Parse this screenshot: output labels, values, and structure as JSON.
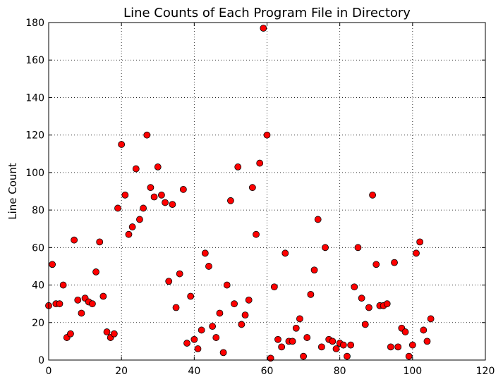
{
  "chart_data": {
    "type": "scatter",
    "title": "Line Counts of Each Program File in Directory",
    "xlabel": "",
    "ylabel": "Line Count",
    "xlim": [
      0,
      120
    ],
    "ylim": [
      0,
      180
    ],
    "x_ticks": [
      "0",
      "20",
      "40",
      "60",
      "80",
      "100",
      "120"
    ],
    "y_ticks": [
      "0",
      "20",
      "40",
      "60",
      "80",
      "100",
      "120",
      "140",
      "160",
      "180"
    ],
    "grid": true,
    "marker_color": "#ff0000",
    "marker_edge_color": "#000000",
    "points": [
      [
        0,
        29
      ],
      [
        1,
        51
      ],
      [
        2,
        30
      ],
      [
        3,
        30
      ],
      [
        4,
        40
      ],
      [
        5,
        12
      ],
      [
        6,
        14
      ],
      [
        7,
        64
      ],
      [
        8,
        32
      ],
      [
        9,
        25
      ],
      [
        10,
        33
      ],
      [
        11,
        31
      ],
      [
        12,
        30
      ],
      [
        13,
        47
      ],
      [
        14,
        63
      ],
      [
        15,
        34
      ],
      [
        16,
        15
      ],
      [
        17,
        12
      ],
      [
        18,
        14
      ],
      [
        19,
        81
      ],
      [
        20,
        115
      ],
      [
        21,
        88
      ],
      [
        22,
        67
      ],
      [
        23,
        71
      ],
      [
        24,
        102
      ],
      [
        25,
        75
      ],
      [
        26,
        81
      ],
      [
        27,
        120
      ],
      [
        28,
        92
      ],
      [
        29,
        87
      ],
      [
        30,
        103
      ],
      [
        31,
        88
      ],
      [
        32,
        84
      ],
      [
        33,
        42
      ],
      [
        34,
        83
      ],
      [
        35,
        28
      ],
      [
        36,
        46
      ],
      [
        37,
        91
      ],
      [
        38,
        9
      ],
      [
        39,
        34
      ],
      [
        40,
        11
      ],
      [
        41,
        6
      ],
      [
        42,
        16
      ],
      [
        43,
        57
      ],
      [
        44,
        50
      ],
      [
        45,
        18
      ],
      [
        46,
        12
      ],
      [
        47,
        25
      ],
      [
        48,
        4
      ],
      [
        49,
        40
      ],
      [
        50,
        85
      ],
      [
        51,
        30
      ],
      [
        52,
        103
      ],
      [
        53,
        19
      ],
      [
        54,
        24
      ],
      [
        55,
        32
      ],
      [
        56,
        92
      ],
      [
        57,
        67
      ],
      [
        58,
        105
      ],
      [
        59,
        177
      ],
      [
        60,
        120
      ],
      [
        61,
        1
      ],
      [
        62,
        39
      ],
      [
        63,
        11
      ],
      [
        64,
        7
      ],
      [
        65,
        57
      ],
      [
        66,
        10
      ],
      [
        67,
        10
      ],
      [
        68,
        17
      ],
      [
        69,
        22
      ],
      [
        70,
        2
      ],
      [
        71,
        12
      ],
      [
        72,
        35
      ],
      [
        73,
        48
      ],
      [
        74,
        75
      ],
      [
        75,
        7
      ],
      [
        76,
        60
      ],
      [
        77,
        11
      ],
      [
        78,
        10
      ],
      [
        79,
        6
      ],
      [
        80,
        9
      ],
      [
        81,
        8
      ],
      [
        82,
        2
      ],
      [
        83,
        8
      ],
      [
        84,
        39
      ],
      [
        85,
        60
      ],
      [
        86,
        33
      ],
      [
        87,
        19
      ],
      [
        88,
        28
      ],
      [
        89,
        88
      ],
      [
        90,
        51
      ],
      [
        91,
        29
      ],
      [
        92,
        29
      ],
      [
        93,
        30
      ],
      [
        94,
        7
      ],
      [
        95,
        52
      ],
      [
        96,
        7
      ],
      [
        97,
        17
      ],
      [
        98,
        15
      ],
      [
        99,
        2
      ],
      [
        100,
        8
      ],
      [
        101,
        57
      ],
      [
        102,
        63
      ],
      [
        103,
        16
      ],
      [
        104,
        10
      ],
      [
        105,
        22
      ]
    ]
  }
}
